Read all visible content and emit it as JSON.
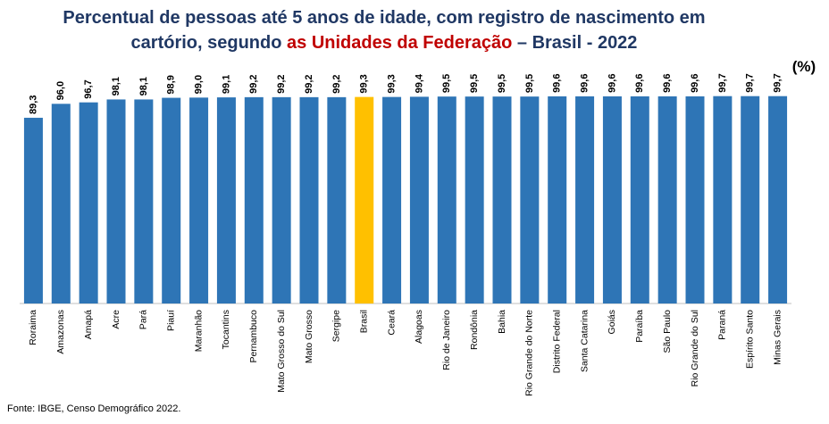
{
  "chart_data": {
    "type": "bar",
    "title": [
      [
        {
          "text": "Percentual de pessoas até 5 anos de idade, com registro de nascimento em",
          "color": "#203864"
        }
      ],
      [
        {
          "text": "cartório, segundo ",
          "color": "#203864"
        },
        {
          "text": "as Unidades da Federação",
          "color": "#c00000"
        },
        {
          "text": " – Brasil - 2022",
          "color": "#203864"
        }
      ]
    ],
    "unit": "(%)",
    "source": "Fonte: IBGE, Censo Demográfico 2022.",
    "categories": [
      "Roraima",
      "Amazonas",
      "Amapá",
      "Acre",
      "Pará",
      "Piauí",
      "Maranhão",
      "Tocantins",
      "Pernambuco",
      "Mato Grosso do Sul",
      "Mato Grosso",
      "Sergipe",
      "Brasil",
      "Ceará",
      "Alagoas",
      "Rio de Janeiro",
      "Rondônia",
      "Bahia",
      "Rio Grande do Norte",
      "Distrito Federal",
      "Santa Catarina",
      "Goiás",
      "Paraíba",
      "São Paulo",
      "Rio Grande do Sul",
      "Paraná",
      "Espírito Santo",
      "Minas Gerais"
    ],
    "values": [
      89.3,
      96.0,
      96.7,
      98.1,
      98.1,
      98.9,
      99.0,
      99.1,
      99.2,
      99.2,
      99.2,
      99.2,
      99.3,
      99.3,
      99.4,
      99.5,
      99.5,
      99.5,
      99.5,
      99.6,
      99.6,
      99.6,
      99.6,
      99.6,
      99.6,
      99.7,
      99.7,
      99.7
    ],
    "value_labels": [
      "89,3",
      "96,0",
      "96,7",
      "98,1",
      "98,1",
      "98,9",
      "99,0",
      "99,1",
      "99,2",
      "99,2",
      "99,2",
      "99,2",
      "99,3",
      "99,3",
      "99,4",
      "99,5",
      "99,5",
      "99,5",
      "99,5",
      "99,6",
      "99,6",
      "99,6",
      "99,6",
      "99,6",
      "99,6",
      "99,7",
      "99,7",
      "99,7"
    ],
    "colors": [
      "#2e75b6",
      "#2e75b6",
      "#2e75b6",
      "#2e75b6",
      "#2e75b6",
      "#2e75b6",
      "#2e75b6",
      "#2e75b6",
      "#2e75b6",
      "#2e75b6",
      "#2e75b6",
      "#2e75b6",
      "#ffc000",
      "#2e75b6",
      "#2e75b6",
      "#2e75b6",
      "#2e75b6",
      "#2e75b6",
      "#2e75b6",
      "#2e75b6",
      "#2e75b6",
      "#2e75b6",
      "#2e75b6",
      "#2e75b6",
      "#2e75b6",
      "#2e75b6",
      "#2e75b6",
      "#2e75b6"
    ],
    "ylim": [
      0,
      100
    ]
  }
}
